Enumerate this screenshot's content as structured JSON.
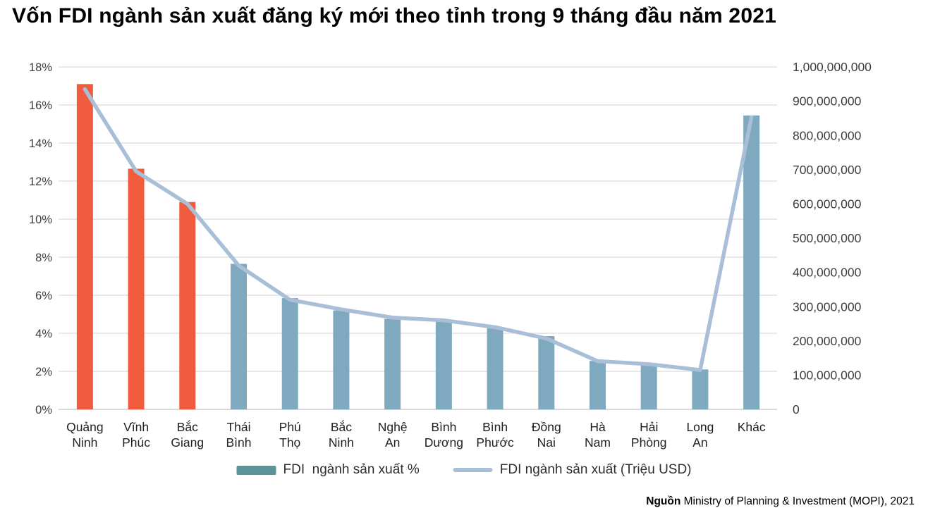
{
  "title": "Vốn FDI ngành sản xuất đăng ký mới theo tỉnh trong 9 tháng đầu năm 2021",
  "source": {
    "prefix": "Nguồn",
    "text": " Ministry of Planning & Investment (MOPI), 2021"
  },
  "legend": {
    "bar_label": "FDI  ngành sản xuất %",
    "line_label": "FDI ngành sản xuất (Triệu USD)"
  },
  "colors": {
    "bar_highlight": "#F15C3E",
    "bar_normal": "#7FA9BE",
    "legend_bar_swatch": "#579598",
    "line": "#A9BFD8",
    "gridline": "#D9D9D9",
    "axis_text": "#3D3D3D",
    "category_text": "#1F1F1F"
  },
  "chart_data": {
    "type": "bar",
    "subtype": "combo-bar-line-dual-axis",
    "title": "Vốn FDI ngành sản xuất đăng ký mới theo tỉnh trong 9 tháng đầu năm 2021",
    "categories": [
      "Quảng Ninh",
      "Vĩnh Phúc",
      "Bắc Giang",
      "Thái Bình",
      "Phú Thọ",
      "Bắc Ninh",
      "Nghệ An",
      "Bình Dương",
      "Bình Phước",
      "Đồng Nai",
      "Hà Nam",
      "Hải Phòng",
      "Long An",
      "Khác"
    ],
    "category_label_lines": [
      [
        "Quảng",
        "Ninh"
      ],
      [
        "Vĩnh",
        "Phúc"
      ],
      [
        "Bắc",
        "Giang"
      ],
      [
        "Thái",
        "Bình"
      ],
      [
        "Phú",
        "Thọ"
      ],
      [
        "Bắc",
        "Ninh"
      ],
      [
        "Nghệ",
        "An"
      ],
      [
        "Bình",
        "Dương"
      ],
      [
        "Bình",
        "Phước"
      ],
      [
        "Đồng",
        "Nai"
      ],
      [
        "Hà",
        "Nam"
      ],
      [
        "Hải",
        "Phòng"
      ],
      [
        "Long",
        "An"
      ],
      [
        "Khác"
      ]
    ],
    "series": [
      {
        "name": "FDI  ngành sản xuất %",
        "type": "bar",
        "axis": "left",
        "unit": "%",
        "values": [
          17.1,
          12.65,
          10.9,
          7.65,
          5.85,
          5.2,
          4.75,
          4.65,
          4.3,
          3.85,
          2.55,
          2.3,
          2.1,
          15.45
        ],
        "highlighted_categories": [
          "Quảng Ninh",
          "Vĩnh Phúc",
          "Bắc Giang"
        ]
      },
      {
        "name": "FDI ngành sản xuất (Triệu USD)",
        "type": "line",
        "axis": "right",
        "unit": "USD",
        "values": [
          935000000,
          695000000,
          600000000,
          420000000,
          320000000,
          292000000,
          268000000,
          260000000,
          240000000,
          207000000,
          141000000,
          132000000,
          115000000,
          853000000
        ]
      }
    ],
    "left_axis": {
      "min": 0,
      "max": 18,
      "step": 2,
      "tick_labels": [
        "0%",
        "2%",
        "4%",
        "6%",
        "8%",
        "10%",
        "12%",
        "14%",
        "16%",
        "18%"
      ]
    },
    "right_axis": {
      "min": 0,
      "max": 1000000000,
      "step": 100000000,
      "tick_labels": [
        "0",
        "100,000,000",
        "200,000,000",
        "300,000,000",
        "400,000,000",
        "500,000,000",
        "600,000,000",
        "700,000,000",
        "800,000,000",
        "900,000,000",
        "1,000,000,000"
      ]
    },
    "grid": "horizontal",
    "legend_position": "bottom"
  }
}
